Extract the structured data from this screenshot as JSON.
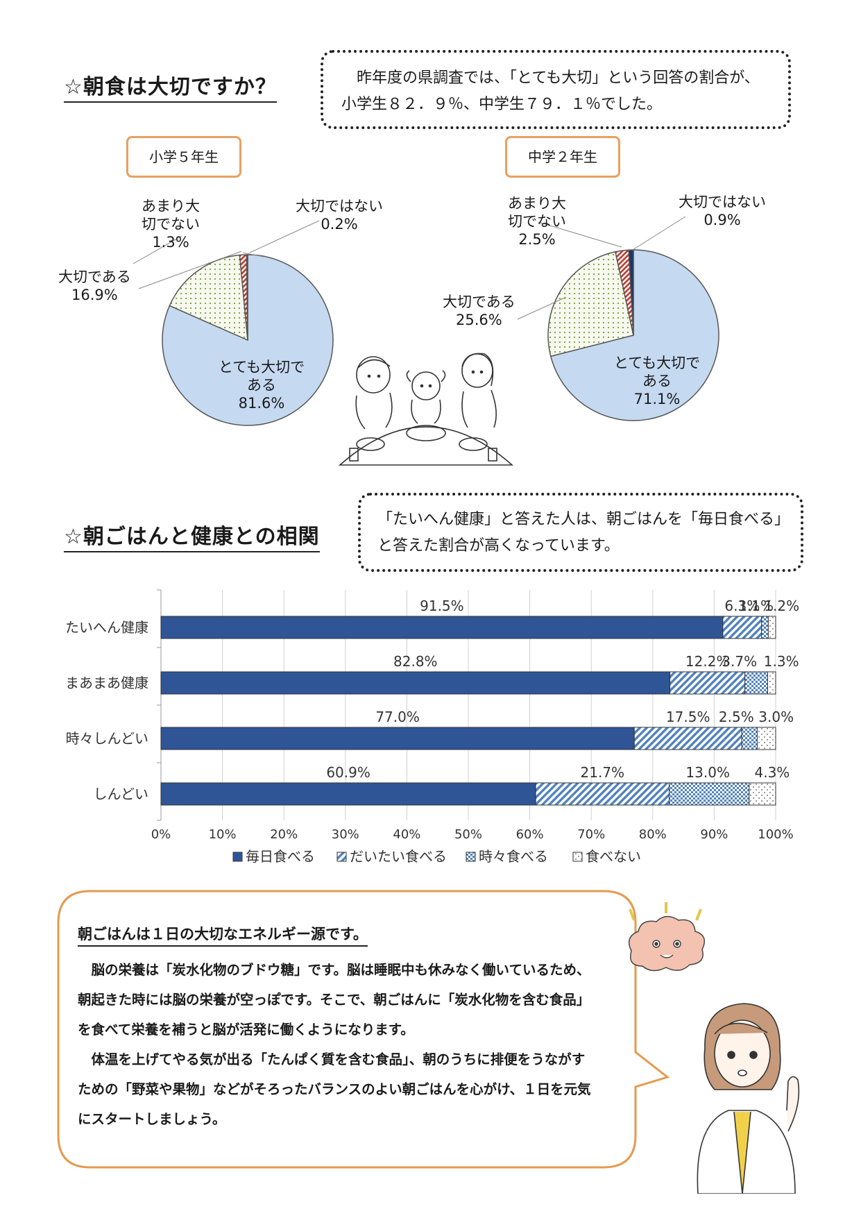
{
  "section1": {
    "title": "☆朝食は大切ですか？",
    "note": "　昨年度の県調査では、「とても大切」という回答の割合が、小学生８２．９％、中学生７９．１％でした。"
  },
  "pie_labels": {
    "grade5": "小学５年生",
    "grade8": "中学２年生"
  },
  "section2": {
    "title": "☆朝ごはんと健康との相関",
    "note": "「たいへん健康」と答えた人は、朝ごはんを「毎日食べる」と答えた割合が高くなっています。"
  },
  "speech": {
    "title": "朝ごはんは１日の大切なエネルギー源です。",
    "p1": "　脳の栄養は「炭水化物のブドウ糖」です。脳は睡眠中も休みなく働いているため、朝起きた時には脳の栄養が空っぽです。そこで、朝ごはんに「炭水化物を含む食品」を食べて栄養を補うと脳が活発に働くようになります。",
    "p2": "　体温を上げてやる気が出る「たんぱく質を含む食品」、朝のうちに排便をうながすための「野菜や果物」などがそろったバランスのよい朝ごはんを心がけ、１日を元気にスタートしましょう。"
  },
  "chart_data": [
    {
      "type": "pie",
      "title": "小学５年生",
      "slices": [
        {
          "label": "とても大切である",
          "value": 81.6,
          "display": "81.6%",
          "color": "#c5d9f1"
        },
        {
          "label": "大切である",
          "value": 16.9,
          "display": "16.9%",
          "color": "#eef3e2"
        },
        {
          "label": "あまり大切でない",
          "value": 1.3,
          "display": "1.3%",
          "color": "#c0392b"
        },
        {
          "label": "大切ではない",
          "value": 0.2,
          "display": "0.2%",
          "color": "#1f3864"
        }
      ]
    },
    {
      "type": "pie",
      "title": "中学２年生",
      "slices": [
        {
          "label": "とても大切である",
          "value": 71.1,
          "display": "71.1%",
          "color": "#c5d9f1"
        },
        {
          "label": "大切である",
          "value": 25.6,
          "display": "25.6%",
          "color": "#eef3e2"
        },
        {
          "label": "あまり大切でない",
          "value": 2.5,
          "display": "2.5%",
          "color": "#c0392b"
        },
        {
          "label": "大切ではない",
          "value": 0.9,
          "display": "0.9%",
          "color": "#1f3864"
        }
      ]
    },
    {
      "type": "bar",
      "orientation": "horizontal",
      "stacked": "percent",
      "categories": [
        "たいへん健康",
        "まあまあ健康",
        "時々しんどい",
        "しんどい"
      ],
      "series": [
        {
          "name": "毎日食べる",
          "values": [
            91.5,
            82.8,
            77.0,
            60.9
          ],
          "labels": [
            "91.5%",
            "82.8%",
            "77.0%",
            "60.9%"
          ],
          "color": "#2f5597"
        },
        {
          "name": "だいたい食べる",
          "values": [
            6.3,
            12.2,
            17.5,
            21.7
          ],
          "labels": [
            "6.3%",
            "12.2%",
            "17.5%",
            "21.7%"
          ],
          "color": "#9dc3e6"
        },
        {
          "name": "時々食べる",
          "values": [
            1.1,
            3.7,
            2.5,
            13.0
          ],
          "labels": [
            "1.1%",
            "3.7%",
            "2.5%",
            "13.0%"
          ],
          "color": "#5b9bd5"
        },
        {
          "name": "食べない",
          "values": [
            1.2,
            1.3,
            3.0,
            4.3
          ],
          "labels": [
            "1.2%",
            "1.3%",
            "3.0%",
            "4.3%"
          ],
          "color": "#ffffff"
        }
      ],
      "xticks": [
        "0%",
        "10%",
        "20%",
        "30%",
        "40%",
        "50%",
        "60%",
        "70%",
        "80%",
        "90%",
        "100%"
      ],
      "xlim": [
        0,
        100
      ],
      "grid": true,
      "legend": "bottom"
    }
  ]
}
